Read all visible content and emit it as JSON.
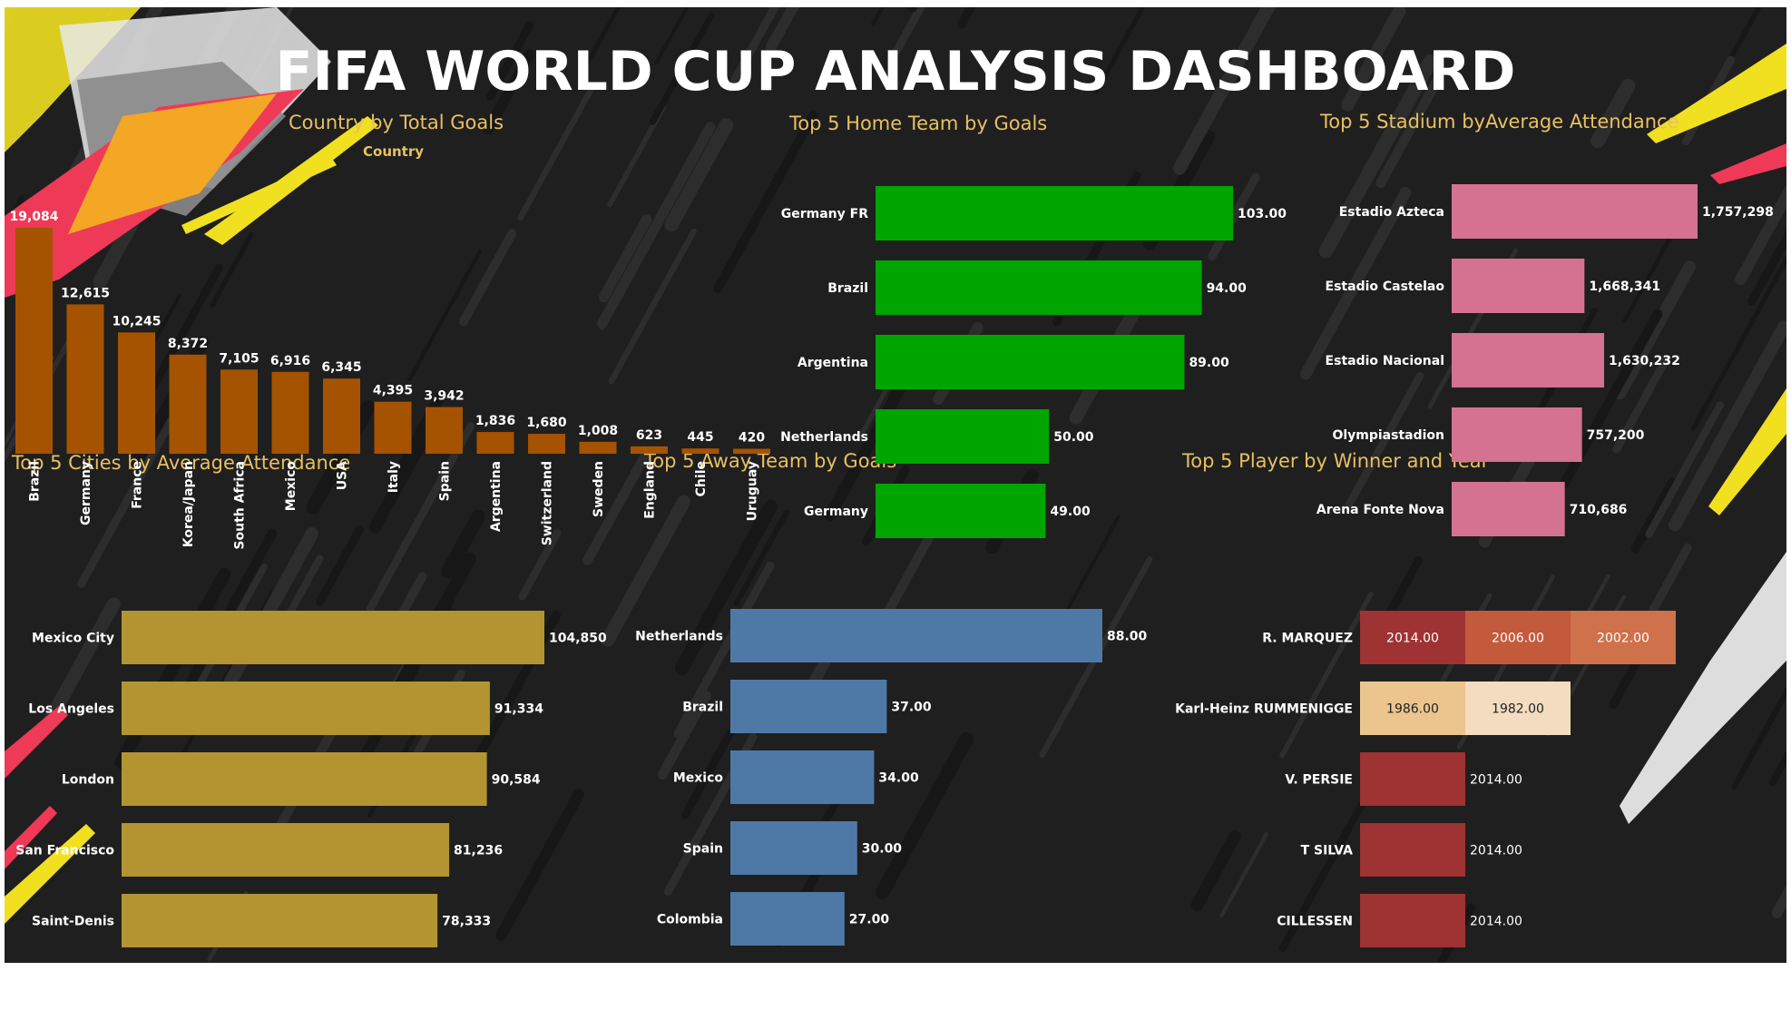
{
  "dashboard": {
    "title": "FIFA WORLD CUP ANALYSIS DASHBOARD"
  },
  "colors": {
    "background": "#1f1f1f",
    "title_text": "#e8c061"
  },
  "chart_data": [
    {
      "id": "country_goals",
      "type": "bar",
      "title": "Country by Total Goals",
      "column_header": "Country",
      "color": "#a55300",
      "categories": [
        "Brazil",
        "Germany",
        "France",
        "Korea/Japan",
        "South Africa",
        "Mexico",
        "USA",
        "Italy",
        "Spain",
        "Argentina",
        "Switzerland",
        "Sweden",
        "England",
        "Chile",
        "Uruguay"
      ],
      "values": [
        19084,
        12615,
        10245,
        8372,
        7105,
        6916,
        6345,
        4395,
        3942,
        1836,
        1680,
        1008,
        623,
        445,
        420
      ],
      "labels": [
        "19,084",
        "12,615",
        "10,245",
        "8,372",
        "7,105",
        "6,916",
        "6,345",
        "4,395",
        "3,942",
        "1,836",
        "1,680",
        "1,008",
        "623",
        "445",
        "420"
      ]
    },
    {
      "id": "home_team",
      "type": "bar",
      "orientation": "horizontal",
      "title": "Top 5 Home Team by Goals",
      "color": "#00a500",
      "categories": [
        "Germany FR",
        "Brazil",
        "Argentina",
        "Netherlands",
        "Germany"
      ],
      "values": [
        103,
        94,
        89,
        50,
        49
      ],
      "labels": [
        "103.00",
        "94.00",
        "89.00",
        "50.00",
        "49.00"
      ]
    },
    {
      "id": "stadium",
      "type": "bar",
      "orientation": "horizontal",
      "title": "Top 5 Stadium byAverage Attendance",
      "color": "#d57292",
      "categories": [
        "Estadio Azteca",
        "Estadio Castelao",
        "Estadio Nacional",
        "Olympiastadion",
        "Arena Fonte Nova"
      ],
      "values": [
        1757298,
        1668341,
        1630232,
        757200,
        710686
      ],
      "bar_fractions": [
        1.0,
        0.54,
        0.62,
        0.53,
        0.46
      ],
      "labels": [
        "1,757,298",
        "1,668,341",
        "1,630,232",
        "757,200",
        "710,686"
      ]
    },
    {
      "id": "cities",
      "type": "bar",
      "orientation": "horizontal",
      "title": "Top 5 Cities by Average Attendance",
      "color": "#b39430",
      "categories": [
        "Mexico City",
        "Los Angeles",
        "London",
        "San Francisco",
        "Saint-Denis"
      ],
      "values": [
        104850,
        91334,
        90584,
        81236,
        78333
      ],
      "labels": [
        "104,850",
        "91,334",
        "90,584",
        "81,236",
        "78,333"
      ]
    },
    {
      "id": "away_team",
      "type": "bar",
      "orientation": "horizontal",
      "title": "Top 5 Away Team by Goals",
      "color": "#4e79a7",
      "categories": [
        "Netherlands",
        "Brazil",
        "Mexico",
        "Spain",
        "Colombia"
      ],
      "values": [
        88,
        37,
        34,
        30,
        27
      ],
      "labels": [
        "88.00",
        "37.00",
        "34.00",
        "30.00",
        "27.00"
      ]
    },
    {
      "id": "players",
      "type": "table",
      "title": "Top 5 Player by Winner and Year",
      "rows": [
        {
          "name": "R. MARQUEZ",
          "cells": [
            {
              "value": "2014.00",
              "color": "#9f3232",
              "text": "#ffffff"
            },
            {
              "value": "2006.00",
              "color": "#c45a3c",
              "text": "#ffffff"
            },
            {
              "value": "2002.00",
              "color": "#cf714a",
              "text": "#ffffff"
            }
          ]
        },
        {
          "name": "Karl-Heinz RUMMENIGGE",
          "cells": [
            {
              "value": "1986.00",
              "color": "#ebc48e",
              "text": "#222222"
            },
            {
              "value": "1982.00",
              "color": "#f3dcc0",
              "text": "#222222"
            }
          ]
        },
        {
          "name": "V. PERSIE",
          "cells": [
            {
              "value": "2014.00",
              "color": "#9f3232",
              "text": "#ffffff"
            }
          ]
        },
        {
          "name": "T SILVA",
          "cells": [
            {
              "value": "2014.00",
              "color": "#9f3232",
              "text": "#ffffff"
            }
          ]
        },
        {
          "name": "CILLESSEN",
          "cells": [
            {
              "value": "2014.00",
              "color": "#9f3232",
              "text": "#ffffff"
            }
          ]
        }
      ]
    }
  ]
}
